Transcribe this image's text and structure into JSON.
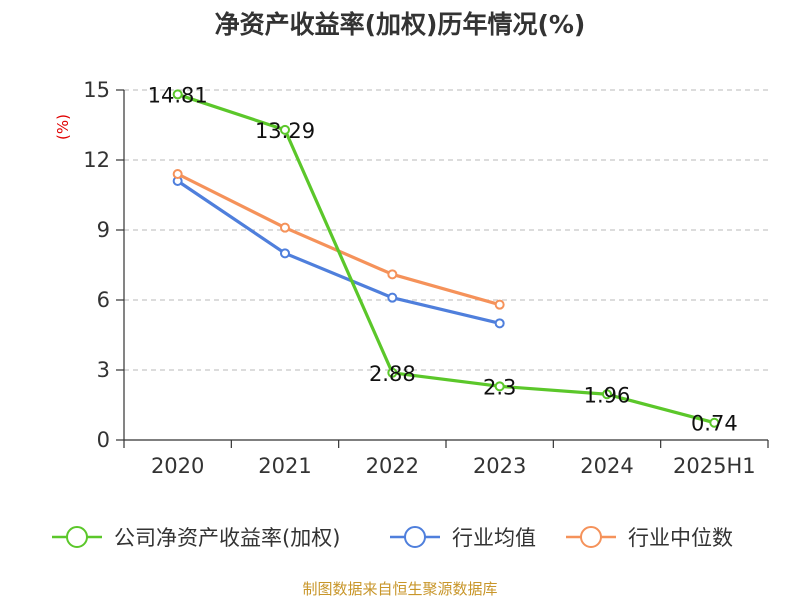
{
  "title": "净资产收益率(加权)历年情况(%)",
  "source": "制图数据来自恒生聚源数据库",
  "chart_data": {
    "type": "line",
    "categories": [
      "2020",
      "2021",
      "2022",
      "2023",
      "2024",
      "2025H1"
    ],
    "ylabel": "(%)",
    "ylim": [
      0,
      15
    ],
    "yticks": [
      0,
      3,
      6,
      9,
      12,
      15
    ],
    "grid": true,
    "legend_position": "bottom",
    "series": [
      {
        "name": "公司净资产收益率(加权)",
        "color": "#5bc72a",
        "values": [
          14.81,
          13.29,
          2.88,
          2.3,
          1.96,
          0.74
        ],
        "labels": [
          "14.81",
          "13.29",
          "2.88",
          "2.3",
          "1.96",
          "0.74"
        ]
      },
      {
        "name": "行业均值",
        "color": "#4f7fdc",
        "values": [
          11.1,
          8.0,
          6.1,
          5.0,
          null,
          null
        ]
      },
      {
        "name": "行业中位数",
        "color": "#f5925a",
        "values": [
          11.4,
          9.1,
          7.1,
          5.8,
          null,
          null
        ]
      }
    ]
  }
}
